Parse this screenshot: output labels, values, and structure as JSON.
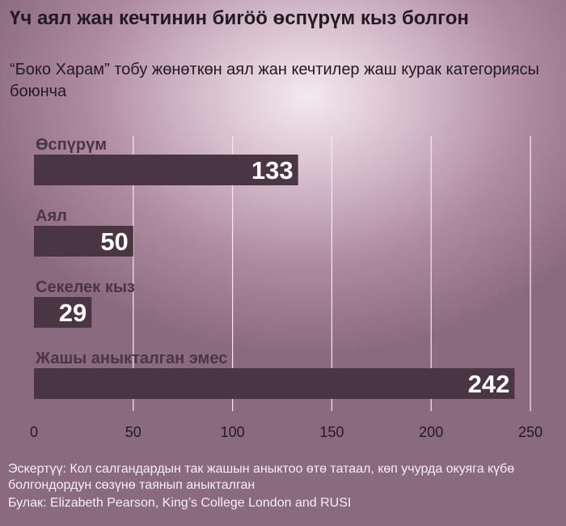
{
  "header": {
    "title": "Үч аял жан кечтинин биröö өспүрүм кыз болгон",
    "subtitle": "“Боко Харам” тобу жөнөткөн аял жан кечтилер жаш курак категориясы боюнча"
  },
  "footer": {
    "note": "Эскертүү: Кол салгандардын так жашын аныктоо өтө татаал, көп учурда окуяга күбө болгондордун сөзүнө таянып аныкталган",
    "source": "Булак: Elizabeth Pearson, King’s College London and RUSI"
  },
  "colors": {
    "bar": "#4a3542",
    "value_text": "#ffffff",
    "category_text": "#4a3542",
    "grid": "#f3eaef"
  },
  "chart_data": {
    "type": "bar",
    "orientation": "horizontal",
    "title": "Үч аял жан кечтинин биröö өспүрүм кыз болгон",
    "subtitle": "“Боко Харам” тобу жөнөткөн аял жан кечтилер жаш курак категориясы боюнча",
    "categories": [
      "Өспүрүм",
      "Аял",
      "Секелек кыз",
      "Жашы аныкталган эмес"
    ],
    "values": [
      133,
      50,
      29,
      242
    ],
    "value_labels": [
      "133",
      "50",
      "29",
      "242"
    ],
    "xlim": [
      0,
      250
    ],
    "xticks": [
      0,
      50,
      100,
      150,
      200,
      250
    ],
    "xtick_labels": [
      "0",
      "50",
      "100",
      "150",
      "200",
      "250"
    ],
    "xlabel": "",
    "ylabel": "",
    "grid": true,
    "legend": "none"
  }
}
